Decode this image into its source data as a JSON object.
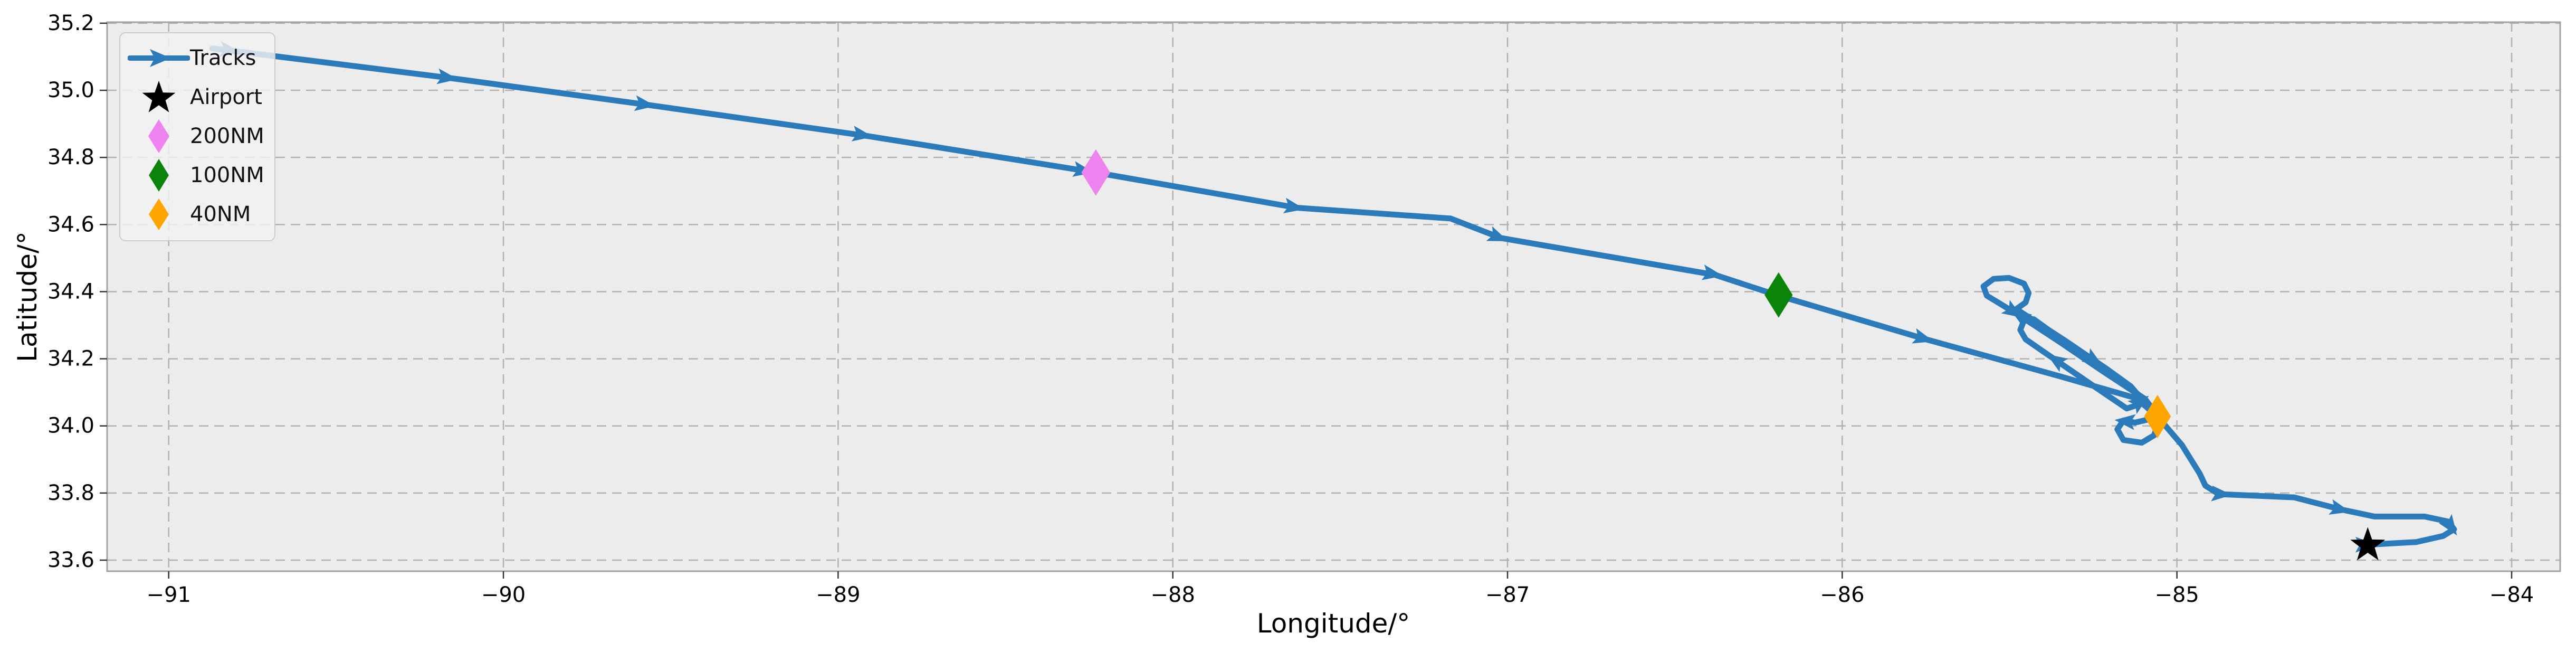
{
  "colors": {
    "figure_background": "#ffffff",
    "axes_background": "#ececec",
    "grid": "#b0b0b0",
    "spine": "#a3a3a3",
    "tick": "#333333",
    "text": "#000000",
    "track_blue": "#2b7bba",
    "violet_200nm": "#ee82ee",
    "green_100nm": "#0a850a",
    "orange_40nm": "#ffa500",
    "airport_black": "#000000"
  },
  "chart_data": {
    "type": "line",
    "title": "",
    "xlabel": "Longitude/°",
    "ylabel": "Latitude/°",
    "xlim": [
      -91.184,
      -83.855
    ],
    "ylim": [
      33.567,
      35.203
    ],
    "grid": true,
    "grid_style": "dashed",
    "legend_position": "upper left",
    "xticks": [
      -91,
      -90,
      -89,
      -88,
      -87,
      -86,
      -85,
      -84
    ],
    "xtick_labels": [
      "−91",
      "−90",
      "−89",
      "−88",
      "−87",
      "−86",
      "−85",
      "−84"
    ],
    "yticks": [
      35.2,
      35.0,
      34.8,
      34.6,
      34.4,
      34.2,
      34.0,
      33.8,
      33.6
    ],
    "ytick_labels": [
      "35.2",
      "35.0",
      "34.8",
      "34.6",
      "34.4",
      "34.2",
      "34.0",
      "33.8",
      "33.6"
    ],
    "series": [
      {
        "name": "Tracks",
        "color": "#2b7bba",
        "line_width": 11,
        "points": [
          [
            -90.87,
            35.125
          ],
          [
            -90.17,
            35.038
          ],
          [
            -89.58,
            34.958
          ],
          [
            -88.92,
            34.865
          ],
          [
            -88.23,
            34.755
          ],
          [
            -87.63,
            34.65
          ],
          [
            -87.17,
            34.618
          ],
          [
            -87.02,
            34.56
          ],
          [
            -86.38,
            34.45
          ],
          [
            -86.19,
            34.388
          ],
          [
            -85.75,
            34.258
          ],
          [
            -85.35,
            34.148
          ],
          [
            -85.13,
            34.085
          ],
          [
            -85.095,
            34.06
          ],
          [
            -85.075,
            34.042
          ],
          [
            -85.09,
            34.018
          ],
          [
            -85.125,
            34.01
          ],
          [
            -85.16,
            34.016
          ],
          [
            -85.178,
            33.99
          ],
          [
            -85.16,
            33.958
          ],
          [
            -85.105,
            33.95
          ],
          [
            -85.068,
            33.972
          ],
          [
            -85.058,
            34.005
          ],
          [
            -85.065,
            34.04
          ],
          [
            -85.095,
            34.08
          ],
          [
            -85.22,
            34.162
          ],
          [
            -85.35,
            34.25
          ],
          [
            -85.46,
            34.322
          ],
          [
            -85.525,
            34.362
          ],
          [
            -85.568,
            34.388
          ],
          [
            -85.578,
            34.416
          ],
          [
            -85.548,
            34.438
          ],
          [
            -85.502,
            34.441
          ],
          [
            -85.457,
            34.424
          ],
          [
            -85.443,
            34.396
          ],
          [
            -85.452,
            34.368
          ],
          [
            -85.48,
            34.348
          ],
          [
            -85.34,
            34.258
          ],
          [
            -85.21,
            34.17
          ],
          [
            -85.138,
            34.118
          ],
          [
            -85.112,
            34.088
          ],
          [
            -85.118,
            34.062
          ],
          [
            -85.15,
            34.052
          ],
          [
            -85.28,
            34.14
          ],
          [
            -85.4,
            34.222
          ],
          [
            -85.452,
            34.258
          ],
          [
            -85.468,
            34.286
          ],
          [
            -85.458,
            34.312
          ],
          [
            -85.428,
            34.318
          ],
          [
            -85.3,
            34.226
          ],
          [
            -85.165,
            34.135
          ],
          [
            -85.105,
            34.085
          ],
          [
            -85.072,
            34.05
          ],
          [
            -85.058,
            34.028
          ],
          [
            -84.985,
            33.943
          ],
          [
            -84.932,
            33.858
          ],
          [
            -84.915,
            33.822
          ],
          [
            -84.88,
            33.8
          ],
          [
            -84.86,
            33.796
          ],
          [
            -84.65,
            33.787
          ],
          [
            -84.51,
            33.751
          ],
          [
            -84.41,
            33.73
          ],
          [
            -84.26,
            33.73
          ],
          [
            -84.19,
            33.715
          ],
          [
            -84.172,
            33.692
          ],
          [
            -84.205,
            33.672
          ],
          [
            -84.285,
            33.654
          ],
          [
            -84.43,
            33.646
          ]
        ]
      }
    ],
    "direction_arrows": [
      [
        -90.82,
        35.119,
        8
      ],
      [
        -90.17,
        35.038,
        8
      ],
      [
        -89.58,
        34.958,
        8
      ],
      [
        -88.93,
        34.867,
        9
      ],
      [
        -88.27,
        34.761,
        10
      ],
      [
        -87.64,
        34.652,
        10
      ],
      [
        -87.03,
        34.563,
        22
      ],
      [
        -86.39,
        34.453,
        10
      ],
      [
        -85.76,
        34.261,
        16
      ],
      [
        -85.25,
        34.197,
        33
      ],
      [
        -85.49,
        34.341,
        33
      ],
      [
        -85.468,
        34.327,
        213
      ],
      [
        -85.36,
        34.195,
        213
      ],
      [
        -85.112,
        34.07,
        -35
      ],
      [
        -85.152,
        34.014,
        186
      ],
      [
        -84.87,
        33.797,
        4
      ],
      [
        -84.515,
        33.752,
        14
      ],
      [
        -84.183,
        33.702,
        55
      ],
      [
        -84.44,
        33.646,
        0
      ]
    ],
    "markers": [
      {
        "name": "Airport",
        "shape": "star",
        "color": "#000000",
        "lon": -84.43,
        "lat": 33.644,
        "size": 56
      },
      {
        "name": "200NM",
        "shape": "thin-diamond",
        "color": "#ee82ee",
        "lon": -88.23,
        "lat": 34.755,
        "size": 88
      },
      {
        "name": "100NM",
        "shape": "thin-diamond",
        "color": "#0a850a",
        "lon": -86.19,
        "lat": 34.39,
        "size": 86
      },
      {
        "name": "40NM",
        "shape": "thin-diamond",
        "color": "#ffa500",
        "lon": -85.058,
        "lat": 34.028,
        "size": 82
      }
    ],
    "legend": {
      "items": [
        {
          "label": "Tracks",
          "marker": "line-arrow",
          "color": "#2b7bba"
        },
        {
          "label": "Airport",
          "marker": "star",
          "color": "#000000"
        },
        {
          "label": "200NM",
          "marker": "thin-diamond",
          "color": "#ee82ee"
        },
        {
          "label": "100NM",
          "marker": "thin-diamond",
          "color": "#0a850a"
        },
        {
          "label": "40NM",
          "marker": "thin-diamond",
          "color": "#ffa500"
        }
      ]
    }
  }
}
